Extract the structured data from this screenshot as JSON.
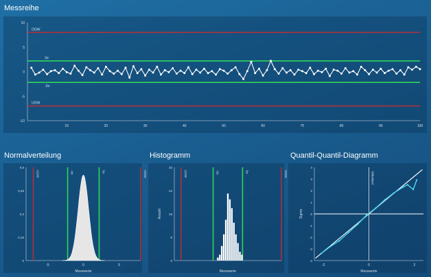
{
  "colors": {
    "limit": "#b1303d",
    "sigma": "#2ed65a",
    "series": "#ffffff",
    "curve_fill": "#e6e6e6",
    "qq_data": "#4fd8f0",
    "qq_ref": "#ffffff",
    "axis": "#9fb3c8",
    "panel_bg": "#0f3d68"
  },
  "chart_data": [
    {
      "type": "line",
      "title": "Messreihe",
      "xlabel": "",
      "ylabel": "",
      "xlim": [
        0,
        100
      ],
      "ylim": [
        -10,
        10
      ],
      "xticks": [
        10,
        20,
        30,
        40,
        50,
        60,
        70,
        80,
        90,
        100
      ],
      "yticks": [
        10,
        5,
        0,
        -5,
        -10
      ],
      "grid": false,
      "reference_lines": [
        {
          "label": "OGW",
          "value": 8,
          "color": "#b1303d"
        },
        {
          "label": "3σ",
          "value": 2.2,
          "color": "#2ed65a"
        },
        {
          "label": "-3σ",
          "value": -2.2,
          "color": "#2ed65a"
        },
        {
          "label": "UGW",
          "value": -7,
          "color": "#b1303d"
        }
      ],
      "series": [
        {
          "x": [
            1,
            2,
            3,
            4,
            5,
            6,
            7,
            8,
            9,
            10,
            11,
            12,
            13,
            14,
            15,
            16,
            17,
            18,
            19,
            20,
            21,
            22,
            23,
            24,
            25,
            26,
            27,
            28,
            29,
            30,
            31,
            32,
            33,
            34,
            35,
            36,
            37,
            38,
            39,
            40,
            41,
            42,
            43,
            44,
            45,
            46,
            47,
            48,
            49,
            50,
            51,
            52,
            53,
            54,
            55,
            56,
            57,
            58,
            59,
            60,
            61,
            62,
            63,
            64,
            65,
            66,
            67,
            68,
            69,
            70,
            71,
            72,
            73,
            74,
            75,
            76,
            77,
            78,
            79,
            80,
            81,
            82,
            83,
            84,
            85,
            86,
            87,
            88,
            89,
            90,
            91,
            92,
            93,
            94,
            95,
            96,
            97,
            98,
            99,
            100
          ],
          "values": [
            0.8,
            -0.6,
            -0.2,
            0.4,
            -0.5,
            0.1,
            0.3,
            -0.3,
            0.6,
            -0.1,
            -0.4,
            1.2,
            0.2,
            -0.7,
            0.9,
            0.3,
            -0.2,
            0.7,
            -0.6,
            1.0,
            0.1,
            -0.4,
            0.2,
            -0.5,
            0.8,
            -1.2,
            1.1,
            -0.3,
            0.5,
            -0.8,
            0.4,
            -0.2,
            1.0,
            -0.6,
            0.3,
            -0.1,
            0.7,
            -0.4,
            0.2,
            -0.3,
            0.9,
            -0.5,
            0.4,
            -0.2,
            0.6,
            -0.3,
            0.1,
            -0.6,
            0.5,
            0.2,
            -0.4,
            0.3,
            0.9,
            -0.5,
            -1.5,
            0.1,
            2.0,
            -0.3,
            0.6,
            -0.8,
            0.3,
            2.2,
            0.5,
            -0.4,
            0.7,
            -0.2,
            0.3,
            -0.6,
            0.4,
            0.1,
            -0.3,
            0.8,
            -0.5,
            0.2,
            -0.1,
            0.6,
            -0.9,
            0.4,
            0.2,
            -0.4,
            0.7,
            -0.2,
            0.1,
            -0.6,
            1.0,
            0.3,
            -0.5,
            0.4,
            -0.2,
            0.6,
            -0.3,
            0.2,
            0.5,
            -0.4,
            0.3,
            -0.6,
            0.9,
            0.4,
            1.0,
            0.5
          ]
        }
      ]
    },
    {
      "type": "area",
      "title": "Normalverteilung",
      "xlabel": "Messwerte",
      "ylabel": "",
      "xlim": [
        -8,
        8
      ],
      "ylim": [
        0,
        0.6
      ],
      "xticks": [
        -5,
        0,
        5
      ],
      "yticks": [
        0.6,
        0.45,
        0.3,
        0.15,
        0
      ],
      "ytick_labels": [
        "0,6",
        "0,45",
        "0,3",
        "0,15",
        "0"
      ],
      "grid": false,
      "reference_lines": [
        {
          "label": "UGW",
          "value": -7,
          "color": "#b1303d"
        },
        {
          "label": "-3σ",
          "value": -2.2,
          "color": "#2ed65a"
        },
        {
          "label": "3σ",
          "value": 2.2,
          "color": "#2ed65a"
        },
        {
          "label": "OGW",
          "value": 8,
          "color": "#b1303d"
        }
      ],
      "mean": 0,
      "sigma": 0.73,
      "peak": 0.55
    },
    {
      "type": "bar",
      "title": "Histogramm",
      "xlabel": "Messwerte",
      "ylabel": "Anzahl",
      "xlim": [
        -8,
        8
      ],
      "ylim": [
        0,
        32
      ],
      "yticks": [
        32,
        24,
        16,
        8,
        0
      ],
      "grid": false,
      "reference_lines": [
        {
          "label": "UGW",
          "value": -7,
          "color": "#b1303d"
        },
        {
          "label": "-3σ",
          "value": -2.2,
          "color": "#2ed65a"
        },
        {
          "label": "3σ",
          "value": 2.2,
          "color": "#2ed65a"
        },
        {
          "label": "OGW",
          "value": 8,
          "color": "#b1303d"
        }
      ],
      "bins": [
        -1.5,
        -1.2,
        -0.9,
        -0.6,
        -0.3,
        0.0,
        0.3,
        0.6,
        0.9,
        1.2,
        1.5,
        1.8,
        2.1
      ],
      "values": [
        1,
        2,
        5,
        9,
        14,
        23,
        21,
        18,
        13,
        9,
        6,
        3,
        2
      ]
    },
    {
      "type": "line",
      "title": "Quantil-Quantil-Diagramm",
      "xlabel": "Messwerte",
      "ylabel": "Sigma",
      "xlim": [
        -2.4,
        2.4
      ],
      "ylim": [
        -4,
        4
      ],
      "xticks": [
        -2,
        0,
        2
      ],
      "yticks": [
        4,
        3,
        2,
        1,
        0,
        -1,
        -2,
        -3,
        -4
      ],
      "vertical_line_label": "Mittelwert",
      "grid": false,
      "series": [
        {
          "x": [
            -2.1,
            -1.7,
            -1.3,
            -0.9,
            -0.5,
            -0.1,
            0.3,
            0.7,
            1.1,
            1.5,
            1.7,
            1.95,
            2.1
          ],
          "values": [
            -3.4,
            -2.8,
            -2.3,
            -1.6,
            -0.9,
            -0.1,
            0.5,
            1.2,
            1.8,
            2.3,
            2.5,
            2.1,
            2.9
          ]
        },
        {
          "x": [
            -2.35,
            2.35
          ],
          "values": [
            -3.8,
            3.8
          ]
        }
      ]
    }
  ]
}
